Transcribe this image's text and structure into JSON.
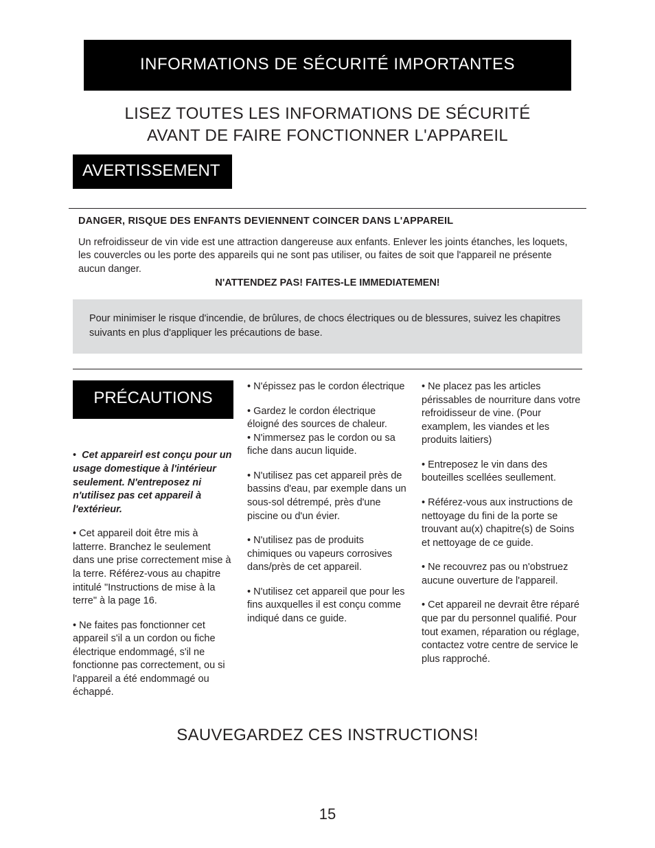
{
  "banner": "INFORMATIONS DE SÉCURITÉ IMPORTANTES",
  "subhead_line1": "LISEZ TOUTES LES INFORMATIONS DE SÉCURITÉ",
  "subhead_line2": "AVANT DE FAIRE FONCTIONNER L'APPAREIL",
  "warning_label": "AVERTISSEMENT",
  "danger": {
    "title": "DANGER, RISQUE DES ENFANTS DEVIENNENT COINCER DANS L'APPAREIL",
    "body": " Un refroidisseur de vin vide est une attraction dangereuse aux enfants.  Enlever les joints étanches, les loquets, les couvercles ou les porte des appareils qui ne sont pas utiliser, ou faites de soit que l'appareil ne présente aucun danger.",
    "cta": "N'ATTENDEZ PAS!  FAITES-LE IMMEDIATEMEN!"
  },
  "gray_box": "Pour minimiser le risque d'incendie, de brûlures, de chocs électriques ou de blessures, suivez les chapitres suivants en plus d'appliquer les précautions de base.",
  "precautions_label": "PRÉCAUTIONS",
  "col1": {
    "b1": "Cet appareirl est conçu pour un usage domestique à l'intérieur seulement.  N'entreposez ni n'utilisez pas cet appareil à l'extérieur.",
    "b2": "•  Cet appareil doit être mis à latterre. Branchez le seulement dans une prise correctement mise à la terre. Référez-vous au chapitre intitulé \"Instructions de mise à la terre\" à la page 16.",
    "b3": "•  Ne faites pas fonctionner cet appareil s'il a un cordon ou fiche électrique endommagé, s'il ne fonctionne pas correctement, ou si l'appareil a été endommagé ou échappé."
  },
  "col2": {
    "b1": "•  N'épissez pas le cordon électrique",
    "b2": "•  Gardez le cordon électrique éloigné des sources de chaleur.",
    "b3": "•  N'immersez pas le cordon ou sa fiche dans aucun liquide.",
    "b4": "•  N'utilisez pas cet appareil près de bassins d'eau, par exemple dans un sous-sol détrempé, près d'une piscine ou d'un évier.",
    "b5": "•  N'utilisez pas de produits chimiques ou vapeurs corrosives dans/près de cet appareil.",
    "b6": "•  N'utilisez cet appareil que pour les fins auxquelles il est conçu comme indiqué dans ce guide."
  },
  "col3": {
    "b1": "• Ne placez pas les articles périssables de nourriture dans votre refroidisseur de vine. (Pour examplem, les viandes et les produits laitiers)",
    "b2": "• Entreposez le vin dans des bouteilles scellées seullement.",
    "b3": "•  Référez-vous aux instructions de nettoyage du fini de la porte se trouvant au(x) chapitre(s) de Soins et nettoyage de ce guide.",
    "b4": "•  Ne recouvrez pas ou n'obstruez aucune ouverture de l'appareil.",
    "b5": "•  Cet appareil ne devrait être réparé que par du personnel qualifié. Pour tout examen, réparation ou réglage, contactez votre centre de service le plus rapproché."
  },
  "footer": "SAUVEGARDEZ CES INSTRUCTIONS!",
  "page_number": "15",
  "colors": {
    "text": "#231f20",
    "bg": "#ffffff",
    "black": "#000000",
    "white": "#ffffff",
    "gray_box": "#dcddde"
  },
  "typography": {
    "banner_fontsize_pt": 18,
    "subhead_fontsize_pt": 18,
    "body_fontsize_pt": 11,
    "footer_fontsize_pt": 18,
    "pagenum_fontsize_pt": 16,
    "font_family": "Arial/Helvetica"
  }
}
